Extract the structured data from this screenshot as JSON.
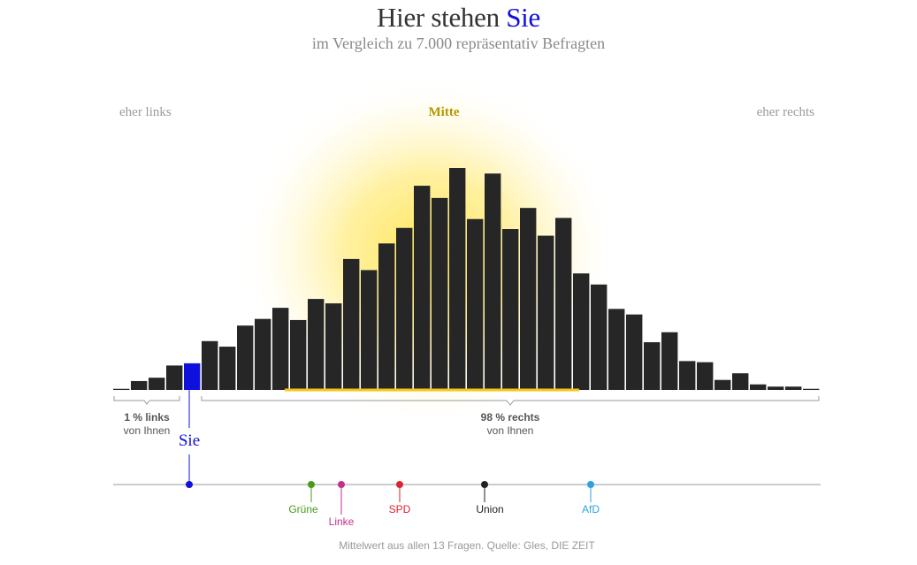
{
  "title": {
    "main": "Hier stehen",
    "highlight": "Sie"
  },
  "subtitle": "im Vergleich zu 7.000 repräsentativ Befragten",
  "labels": {
    "left": "eher links",
    "center": "Mitte",
    "right": "eher rechts",
    "you": "Sie"
  },
  "brackets": {
    "left_line1": "1 % links",
    "left_line2": "von Ihnen",
    "right_line1": "98 % rechts",
    "right_line2": "von Ihnen"
  },
  "footnote": "Mittelwert aus allen 13 Fragen. Quelle: Gles, DIE ZEIT",
  "colors": {
    "bar": "#262626",
    "you": "#1010dd",
    "glow": "#ffe34d",
    "mitte": "#b39800"
  },
  "chart_data": {
    "type": "bar",
    "title": "Hier stehen Sie",
    "subtitle": "im Vergleich zu 7.000 repräsentativ Befragten",
    "xlabel": "",
    "ylabel": "",
    "values": [
      0.5,
      4,
      5.5,
      11,
      12,
      22,
      19.5,
      29,
      32,
      37,
      31.5,
      41,
      39,
      59,
      54,
      66,
      73,
      92,
      86.5,
      100,
      77,
      97.5,
      72.5,
      82,
      69.5,
      77.5,
      52.5,
      47.5,
      36.5,
      34,
      21.5,
      26,
      13,
      12.5,
      4.5,
      7.5,
      2.5,
      1.5,
      1.5,
      0.5
    ],
    "highlight_index": 4,
    "ylim": [
      0,
      100
    ],
    "parties": [
      {
        "name": "Grüne",
        "position": 0.28,
        "color": "#4a9a1a"
      },
      {
        "name": "Linke",
        "position": 0.3225,
        "color": "#c2308f"
      },
      {
        "name": "SPD",
        "position": 0.405,
        "color": "#dd2233"
      },
      {
        "name": "Union",
        "position": 0.525,
        "color": "#222222"
      },
      {
        "name": "AfD",
        "position": 0.675,
        "color": "#2aa3dd"
      }
    ],
    "you_position": 0.1075
  }
}
